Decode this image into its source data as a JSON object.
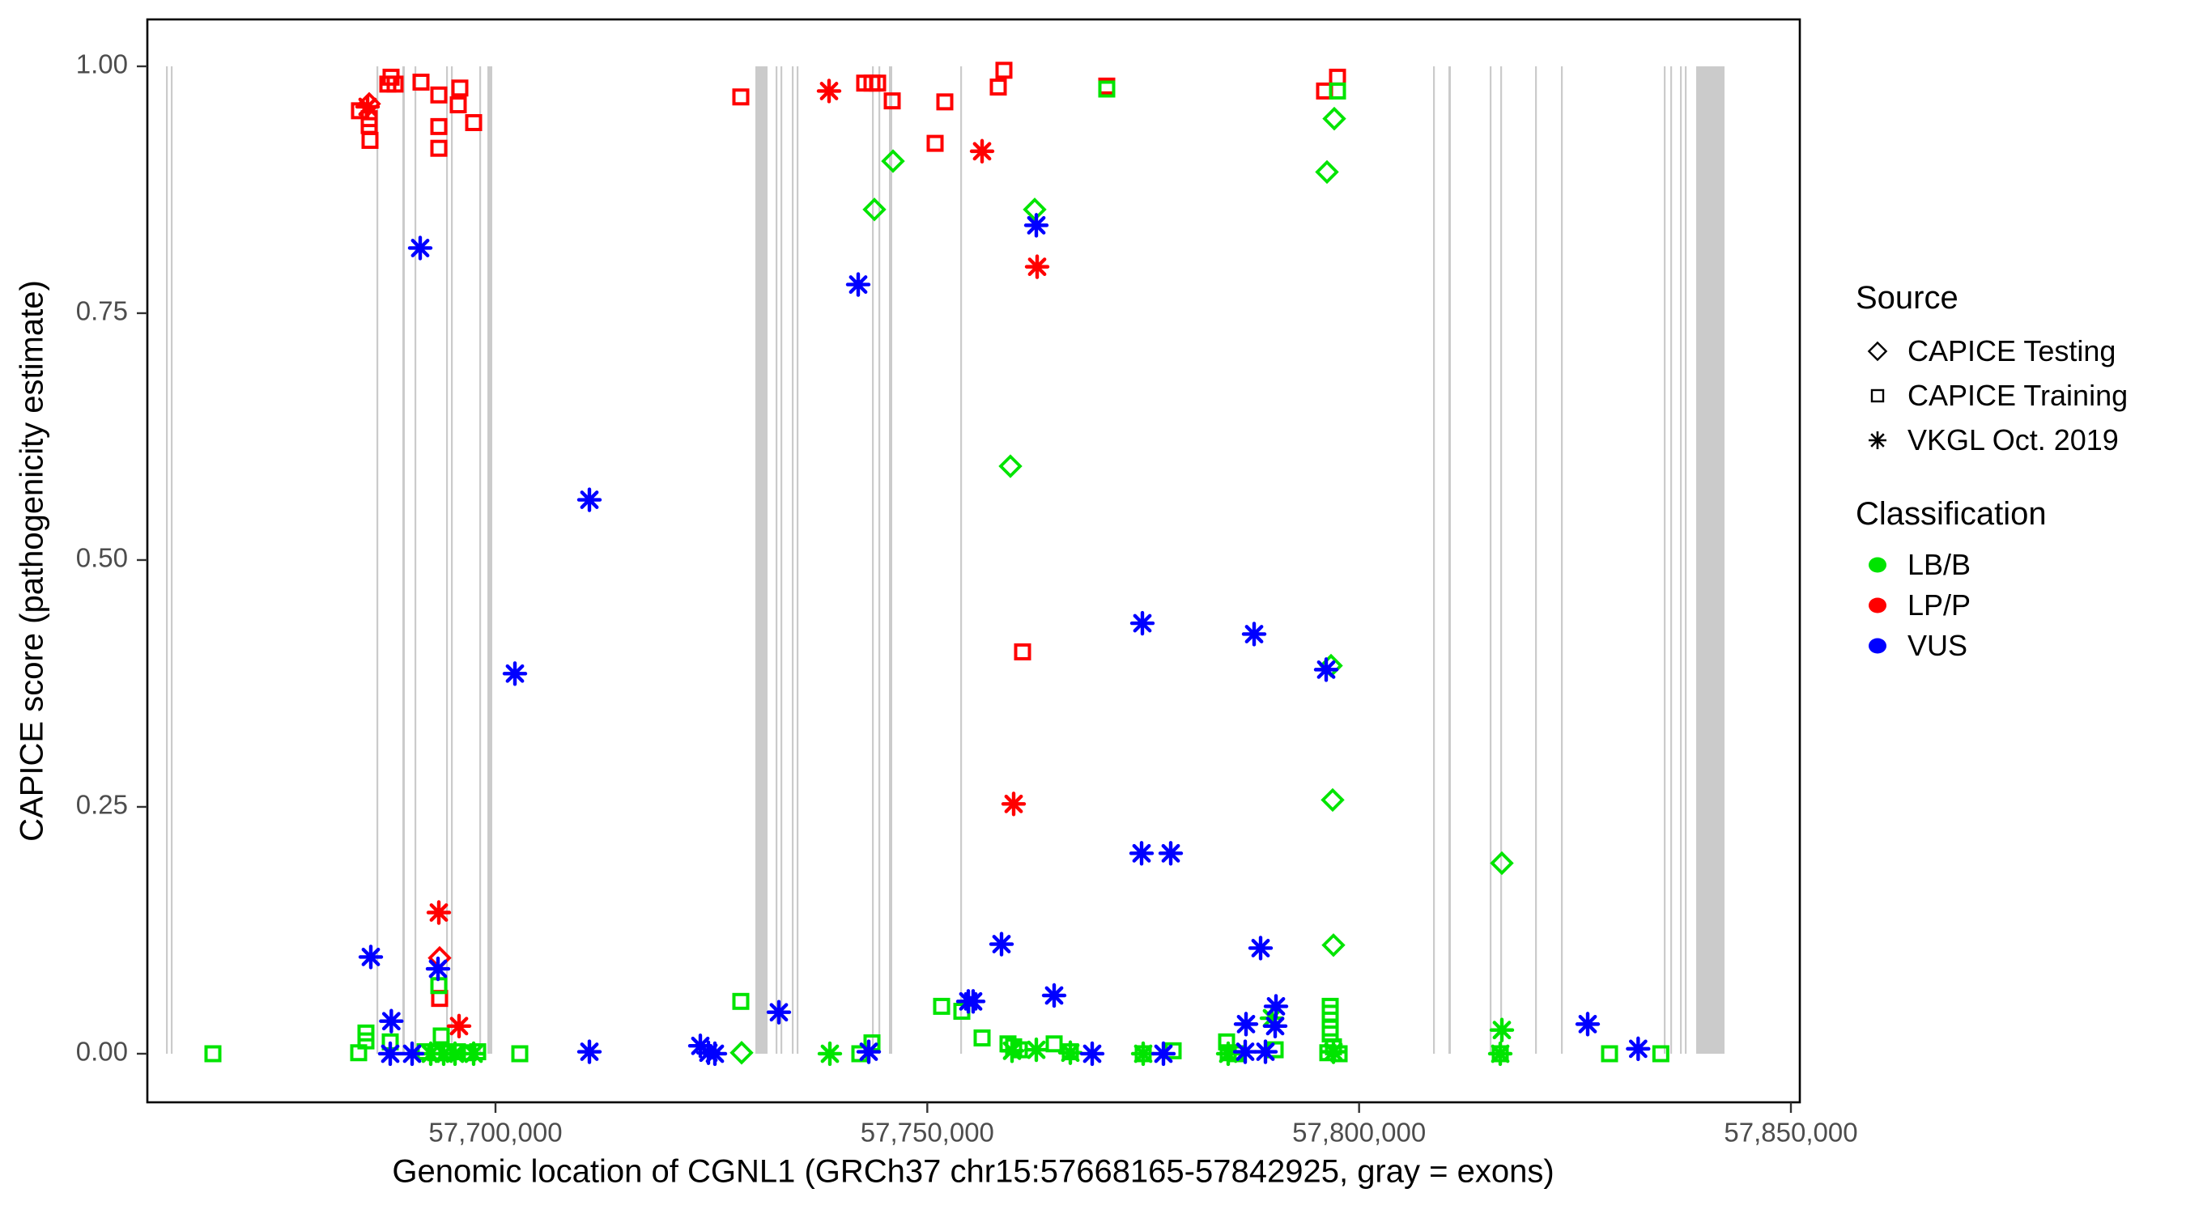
{
  "window": {
    "background": "#FFFFFF"
  },
  "colors": {
    "LB/B": "#00E400",
    "LP/P": "#FF0000",
    "VUS": "#0000FF",
    "exon": "#CBCBCB",
    "axis_text": "#4D4D4D",
    "panel_border": "#000000",
    "legend_glyph": "#000000"
  },
  "legend": {
    "source": {
      "title": "Source",
      "items": [
        {
          "label": "CAPICE Testing",
          "marker": "diamond"
        },
        {
          "label": "CAPICE Training",
          "marker": "square"
        },
        {
          "label": "VKGL Oct. 2019",
          "marker": "asterisk"
        }
      ]
    },
    "classification": {
      "title": "Classification",
      "items": [
        {
          "label": "LB/B",
          "color_key": "LB/B"
        },
        {
          "label": "LP/P",
          "color_key": "LP/P"
        },
        {
          "label": "VUS",
          "color_key": "VUS"
        }
      ]
    }
  },
  "chart_data": {
    "type": "scatter",
    "title": "",
    "xlabel": "Genomic location of CGNL1 (GRCh37 chr15:57668165-57842925, gray = exons)",
    "ylabel": "CAPICE score (pathogenicity estimate)",
    "xlim": [
      57659688,
      57851031
    ],
    "ylim": [
      -0.0492,
      1.0475
    ],
    "grid": false,
    "legend_position": "right",
    "x_ticks": [
      {
        "value": 57700000,
        "label": "57,700,000"
      },
      {
        "value": 57750000,
        "label": "57,750,000"
      },
      {
        "value": 57800000,
        "label": "57,800,000"
      },
      {
        "value": 57850000,
        "label": "57,850,000"
      }
    ],
    "y_ticks": [
      {
        "value": 0.0,
        "label": "0.00"
      },
      {
        "value": 0.25,
        "label": "0.25"
      },
      {
        "value": 0.5,
        "label": "0.50"
      },
      {
        "value": 0.75,
        "label": "0.75"
      },
      {
        "value": 1.0,
        "label": "1.00"
      }
    ],
    "exons": [
      [
        57661844,
        57662031
      ],
      [
        57662406,
        57662594
      ],
      [
        57686219,
        57686406
      ],
      [
        57689219,
        57689500
      ],
      [
        57690625,
        57690813
      ],
      [
        57694281,
        57694469
      ],
      [
        57694844,
        57695031
      ],
      [
        57698125,
        57698313
      ],
      [
        57699063,
        57699625
      ],
      [
        57730094,
        57731500
      ],
      [
        57732438,
        57732625
      ],
      [
        57733000,
        57733188
      ],
      [
        57734313,
        57734500
      ],
      [
        57734875,
        57735063
      ],
      [
        57743594,
        57743781
      ],
      [
        57744344,
        57744531
      ],
      [
        57745563,
        57745938
      ],
      [
        57753813,
        57754000
      ],
      [
        57808563,
        57808750
      ],
      [
        57810344,
        57810625
      ],
      [
        57815125,
        57815313
      ],
      [
        57816344,
        57816531
      ],
      [
        57820375,
        57820563
      ],
      [
        57823375,
        57823563
      ],
      [
        57835281,
        57835469
      ],
      [
        57836031,
        57836219
      ],
      [
        57837156,
        57837344
      ],
      [
        57837719,
        57837906
      ],
      [
        57839031,
        57842313
      ]
    ],
    "series": [
      {
        "name": "CAPICE Training / LP/P",
        "source": "CAPICE Training",
        "classification": "LP/P",
        "marker": "square",
        "color_key": "LP/P",
        "points": [
          [
            57687906,
            0.989
          ],
          [
            57687531,
            0.982
          ],
          [
            57688375,
            0.982
          ],
          [
            57684250,
            0.955
          ],
          [
            57685375,
            0.947
          ],
          [
            57685375,
            0.94
          ],
          [
            57685469,
            0.925
          ],
          [
            57691375,
            0.984
          ],
          [
            57693438,
            0.971
          ],
          [
            57695875,
            0.978
          ],
          [
            57695688,
            0.961
          ],
          [
            57693438,
            0.939
          ],
          [
            57693438,
            0.917
          ],
          [
            57697469,
            0.943
          ],
          [
            57728406,
            0.969
          ],
          [
            57742750,
            0.983
          ],
          [
            57743594,
            0.983
          ],
          [
            57744250,
            0.983
          ],
          [
            57745938,
            0.965
          ],
          [
            57752031,
            0.964
          ],
          [
            57750906,
            0.922
          ],
          [
            57758875,
            0.996
          ],
          [
            57758219,
            0.979
          ],
          [
            57770781,
            0.98
          ],
          [
            57797500,
            0.989
          ],
          [
            57796000,
            0.975
          ],
          [
            57761031,
            0.407
          ],
          [
            57693531,
            0.056
          ]
        ]
      },
      {
        "name": "CAPICE Training / LB/B",
        "source": "CAPICE Training",
        "classification": "LB/B",
        "marker": "square",
        "color_key": "LB/B",
        "points": [
          [
            57770781,
            0.977
          ],
          [
            57797500,
            0.975
          ],
          [
            57796656,
            0.048
          ],
          [
            57796656,
            0.041
          ],
          [
            57796656,
            0.026
          ],
          [
            57796656,
            0.02
          ],
          [
            57797031,
            0.007
          ],
          [
            57796375,
            0.001
          ],
          [
            57797688,
            0.0
          ],
          [
            57667281,
            0.0
          ],
          [
            57684156,
            0.001
          ],
          [
            57693438,
            0.069
          ],
          [
            57685000,
            0.021
          ],
          [
            57685000,
            0.013
          ],
          [
            57687813,
            0.012
          ],
          [
            57693719,
            0.018
          ],
          [
            57691844,
            0.002
          ],
          [
            57693063,
            0.001
          ],
          [
            57694375,
            0.001
          ],
          [
            57695594,
            0.002
          ],
          [
            57696813,
            0.001
          ],
          [
            57697938,
            0.002
          ],
          [
            57702813,
            0.0
          ],
          [
            57728406,
            0.053
          ],
          [
            57742188,
            0.0
          ],
          [
            57743594,
            0.011
          ],
          [
            57751656,
            0.048
          ],
          [
            57754000,
            0.043
          ],
          [
            57756344,
            0.016
          ],
          [
            57759344,
            0.01
          ],
          [
            57760000,
            0.007
          ],
          [
            57760656,
            0.004
          ],
          [
            57764688,
            0.01
          ],
          [
            57766563,
            0.002
          ],
          [
            57775000,
            0.0
          ],
          [
            57778469,
            0.003
          ],
          [
            57784656,
            0.012
          ],
          [
            57784844,
            0.001
          ],
          [
            57785688,
            0.0
          ],
          [
            57790281,
            0.004
          ],
          [
            57816344,
            0.0
          ],
          [
            57829000,
            0.0
          ],
          [
            57834938,
            0.0
          ]
        ]
      },
      {
        "name": "CAPICE Testing / LP/P",
        "source": "CAPICE Testing",
        "classification": "LP/P",
        "marker": "diamond",
        "color_key": "LP/P",
        "points": [
          [
            57685375,
            0.962
          ],
          [
            57693531,
            0.097
          ]
        ]
      },
      {
        "name": "CAPICE Testing / LB/B",
        "source": "CAPICE Testing",
        "classification": "LB/B",
        "marker": "diamond",
        "color_key": "LB/B",
        "points": [
          [
            57746031,
            0.904
          ],
          [
            57743875,
            0.855
          ],
          [
            57762438,
            0.855
          ],
          [
            57797125,
            0.947
          ],
          [
            57796281,
            0.893
          ],
          [
            57759625,
            0.595
          ],
          [
            57796750,
            0.393
          ],
          [
            57796938,
            0.257
          ],
          [
            57797031,
            0.11
          ],
          [
            57816531,
            0.193
          ],
          [
            57728500,
            0.001
          ]
        ]
      },
      {
        "name": "VKGL Oct. 2019 / LP/P",
        "source": "VKGL Oct. 2019",
        "classification": "LP/P",
        "marker": "asterisk",
        "color_key": "LP/P",
        "points": [
          [
            57685188,
            0.959
          ],
          [
            57738625,
            0.975
          ],
          [
            57756344,
            0.914
          ],
          [
            57762719,
            0.797
          ],
          [
            57760000,
            0.253
          ],
          [
            57693438,
            0.143
          ],
          [
            57695781,
            0.028
          ]
        ]
      },
      {
        "name": "VKGL Oct. 2019 / LB/B",
        "source": "VKGL Oct. 2019",
        "classification": "LB/B",
        "marker": "asterisk",
        "color_key": "LB/B",
        "points": [
          [
            57789906,
            0.036
          ],
          [
            57797031,
            0.002
          ],
          [
            57692500,
            0.0
          ],
          [
            57694000,
            0.0
          ],
          [
            57695313,
            0.0
          ],
          [
            57697469,
            0.0
          ],
          [
            57738719,
            0.0
          ],
          [
            57759813,
            0.003
          ],
          [
            57762625,
            0.004
          ],
          [
            57766563,
            0.001
          ],
          [
            57775000,
            0.0
          ],
          [
            57784844,
            0.0
          ],
          [
            57816531,
            0.024
          ],
          [
            57816344,
            0.0
          ]
        ]
      },
      {
        "name": "VKGL Oct. 2019 / VUS",
        "source": "VKGL Oct. 2019",
        "classification": "VUS",
        "marker": "asterisk",
        "color_key": "VUS",
        "points": [
          [
            57691281,
            0.816
          ],
          [
            57710875,
            0.561
          ],
          [
            57702250,
            0.385
          ],
          [
            57762625,
            0.839
          ],
          [
            57742000,
            0.779
          ],
          [
            57774906,
            0.436
          ],
          [
            57787844,
            0.425
          ],
          [
            57796188,
            0.389
          ],
          [
            57774813,
            0.203
          ],
          [
            57778188,
            0.203
          ],
          [
            57758594,
            0.111
          ],
          [
            57788594,
            0.107
          ],
          [
            57764688,
            0.059
          ],
          [
            57754750,
            0.053
          ],
          [
            57790375,
            0.048
          ],
          [
            57786906,
            0.03
          ],
          [
            57790281,
            0.028
          ],
          [
            57685563,
            0.098
          ],
          [
            57693344,
            0.086
          ],
          [
            57687938,
            0.033
          ],
          [
            57687813,
            0.0
          ],
          [
            57690344,
            0.0
          ],
          [
            57710875,
            0.002
          ],
          [
            57732813,
            0.042
          ],
          [
            57723719,
            0.008
          ],
          [
            57724656,
            0.001
          ],
          [
            57725406,
            0.0
          ],
          [
            57743219,
            0.002
          ],
          [
            57755313,
            0.053
          ],
          [
            57769094,
            0.0
          ],
          [
            57777344,
            0.0
          ],
          [
            57786813,
            0.002
          ],
          [
            57789156,
            0.002
          ],
          [
            57826469,
            0.03
          ],
          [
            57832313,
            0.005
          ]
        ]
      }
    ]
  }
}
